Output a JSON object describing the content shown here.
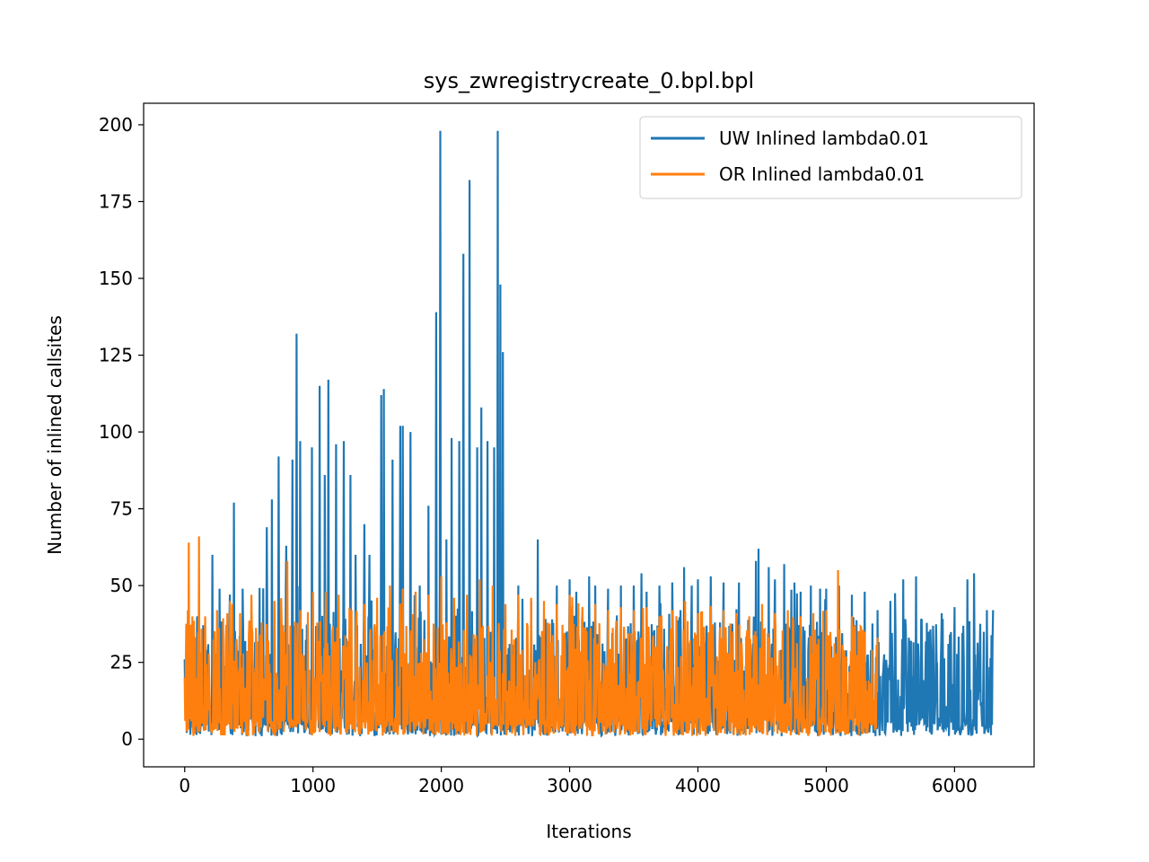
{
  "chart_data": {
    "type": "line",
    "title": "sys_zwregistrycreate_0.bpl.bpl",
    "xlabel": "Iterations",
    "ylabel": "Number of inlined callsites",
    "xlim": [
      -320,
      6620
    ],
    "ylim": [
      -9,
      207
    ],
    "xticks": [
      0,
      1000,
      2000,
      3000,
      4000,
      5000,
      6000
    ],
    "yticks": [
      0,
      25,
      50,
      75,
      100,
      125,
      150,
      175,
      200
    ],
    "legend_position": "top-right",
    "grid": false,
    "series": [
      {
        "name": "UW Inlined lambda0.01",
        "color": "#1f77b4",
        "x_start": 0,
        "x_end": 6300,
        "envelope_low": 1,
        "peaks": [
          [
            0,
            26
          ],
          [
            100,
            40
          ],
          [
            215,
            60
          ],
          [
            270,
            49
          ],
          [
            385,
            77
          ],
          [
            450,
            49
          ],
          [
            640,
            69
          ],
          [
            680,
            78
          ],
          [
            730,
            92
          ],
          [
            790,
            63
          ],
          [
            840,
            91
          ],
          [
            870,
            132
          ],
          [
            900,
            97
          ],
          [
            990,
            95
          ],
          [
            1050,
            115
          ],
          [
            1090,
            86
          ],
          [
            1120,
            117
          ],
          [
            1180,
            96
          ],
          [
            1240,
            97
          ],
          [
            1290,
            86
          ],
          [
            1330,
            60
          ],
          [
            1400,
            70
          ],
          [
            1440,
            60
          ],
          [
            1530,
            112
          ],
          [
            1550,
            114
          ],
          [
            1620,
            91
          ],
          [
            1680,
            102
          ],
          [
            1700,
            102
          ],
          [
            1760,
            100
          ],
          [
            1830,
            50
          ],
          [
            1900,
            76
          ],
          [
            1960,
            139
          ],
          [
            1990,
            198
          ],
          [
            2040,
            65
          ],
          [
            2080,
            98
          ],
          [
            2140,
            97
          ],
          [
            2170,
            158
          ],
          [
            2220,
            182
          ],
          [
            2280,
            95
          ],
          [
            2310,
            108
          ],
          [
            2360,
            97
          ],
          [
            2410,
            95
          ],
          [
            2440,
            198
          ],
          [
            2460,
            148
          ],
          [
            2480,
            126
          ],
          [
            2600,
            50
          ],
          [
            2700,
            45
          ],
          [
            2750,
            65
          ],
          [
            2900,
            50
          ],
          [
            3000,
            52
          ],
          [
            3050,
            48
          ],
          [
            3150,
            53
          ],
          [
            3200,
            50
          ],
          [
            3300,
            49
          ],
          [
            3400,
            50
          ],
          [
            3500,
            50
          ],
          [
            3560,
            54
          ],
          [
            3600,
            48
          ],
          [
            3700,
            50
          ],
          [
            3800,
            51
          ],
          [
            3890,
            56
          ],
          [
            3950,
            50
          ],
          [
            4000,
            52
          ],
          [
            4100,
            53
          ],
          [
            4200,
            51
          ],
          [
            4320,
            51
          ],
          [
            4450,
            58
          ],
          [
            4470,
            62
          ],
          [
            4550,
            56
          ],
          [
            4600,
            52
          ],
          [
            4670,
            57
          ],
          [
            4750,
            51
          ],
          [
            4800,
            48
          ],
          [
            4880,
            50
          ],
          [
            4950,
            49
          ],
          [
            5000,
            49
          ],
          [
            5100,
            50
          ],
          [
            5200,
            47
          ],
          [
            5300,
            48
          ],
          [
            5400,
            42
          ],
          [
            5500,
            45
          ],
          [
            5600,
            52
          ],
          [
            5700,
            53
          ],
          [
            5800,
            35
          ],
          [
            5900,
            41
          ],
          [
            6000,
            43
          ],
          [
            6100,
            52
          ],
          [
            6150,
            54
          ],
          [
            6250,
            42
          ],
          [
            6300,
            42
          ]
        ]
      },
      {
        "name": "OR Inlined lambda0.01",
        "color": "#ff7f0e",
        "x_start": 0,
        "x_end": 5400,
        "envelope_low": 1,
        "peaks": [
          [
            0,
            20
          ],
          [
            30,
            64
          ],
          [
            60,
            40
          ],
          [
            110,
            66
          ],
          [
            160,
            40
          ],
          [
            250,
            42
          ],
          [
            350,
            45
          ],
          [
            430,
            41
          ],
          [
            520,
            47
          ],
          [
            600,
            38
          ],
          [
            700,
            45
          ],
          [
            800,
            58
          ],
          [
            900,
            42
          ],
          [
            1000,
            48
          ],
          [
            1100,
            48
          ],
          [
            1200,
            47
          ],
          [
            1300,
            42
          ],
          [
            1400,
            44
          ],
          [
            1500,
            46
          ],
          [
            1600,
            50
          ],
          [
            1700,
            49
          ],
          [
            1800,
            48
          ],
          [
            1900,
            47
          ],
          [
            2000,
            53
          ],
          [
            2100,
            46
          ],
          [
            2200,
            47
          ],
          [
            2300,
            52
          ],
          [
            2400,
            50
          ],
          [
            2500,
            44
          ],
          [
            2600,
            47
          ],
          [
            2700,
            46
          ],
          [
            2800,
            45
          ],
          [
            2900,
            44
          ],
          [
            3000,
            47
          ],
          [
            3100,
            43
          ],
          [
            3200,
            44
          ],
          [
            3300,
            42
          ],
          [
            3400,
            43
          ],
          [
            3500,
            42
          ],
          [
            3600,
            43
          ],
          [
            3700,
            40
          ],
          [
            3800,
            42
          ],
          [
            3900,
            45
          ],
          [
            4000,
            41
          ],
          [
            4100,
            43
          ],
          [
            4200,
            42
          ],
          [
            4300,
            41
          ],
          [
            4400,
            40
          ],
          [
            4500,
            44
          ],
          [
            4600,
            41
          ],
          [
            4700,
            42
          ],
          [
            4800,
            40
          ],
          [
            4900,
            41
          ],
          [
            5000,
            42
          ],
          [
            5090,
            55
          ],
          [
            5200,
            40
          ],
          [
            5300,
            35
          ],
          [
            5400,
            33
          ]
        ]
      }
    ]
  }
}
